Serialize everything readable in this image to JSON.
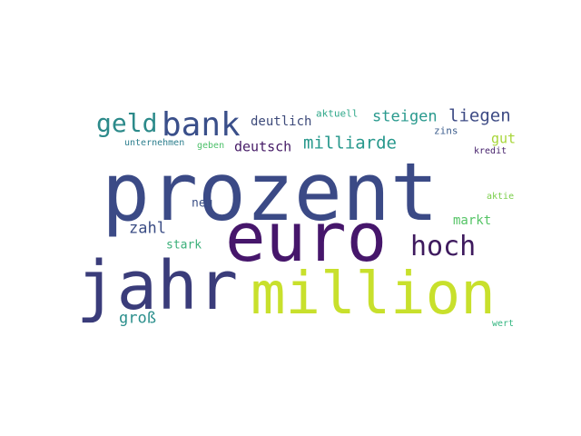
{
  "words": [
    {
      "text": "prozent",
      "color": "#3b4a86"
    },
    {
      "text": "euro",
      "color": "#46166b"
    },
    {
      "text": "jahr",
      "color": "#3a3c7a"
    },
    {
      "text": "million",
      "color": "#c8e02c"
    },
    {
      "text": "bank",
      "color": "#3a4f8a"
    },
    {
      "text": "geld",
      "color": "#2c8a8a"
    },
    {
      "text": "hoch",
      "color": "#3e1a5e"
    },
    {
      "text": "deutlich",
      "color": "#3d4a7a"
    },
    {
      "text": "aktuell",
      "color": "#2fa88a"
    },
    {
      "text": "steigen",
      "color": "#2a9a8e"
    },
    {
      "text": "liegen",
      "color": "#3e4b85"
    },
    {
      "text": "zins",
      "color": "#3b5c8c"
    },
    {
      "text": "gut",
      "color": "#a8d63a"
    },
    {
      "text": "unternehmen",
      "color": "#2d7f8e"
    },
    {
      "text": "geben",
      "color": "#4cc06a"
    },
    {
      "text": "deutsch",
      "color": "#451a66"
    },
    {
      "text": "milliarde",
      "color": "#27988c"
    },
    {
      "text": "kredit",
      "color": "#45206b"
    },
    {
      "text": "zahl",
      "color": "#3a4c84"
    },
    {
      "text": "neu",
      "color": "#3b4f86"
    },
    {
      "text": "aktie",
      "color": "#7ace4a"
    },
    {
      "text": "markt",
      "color": "#55c466"
    },
    {
      "text": "stark",
      "color": "#3bb07a"
    },
    {
      "text": "groß",
      "color": "#2b8f8c"
    },
    {
      "text": "wert",
      "color": "#34b680"
    }
  ]
}
